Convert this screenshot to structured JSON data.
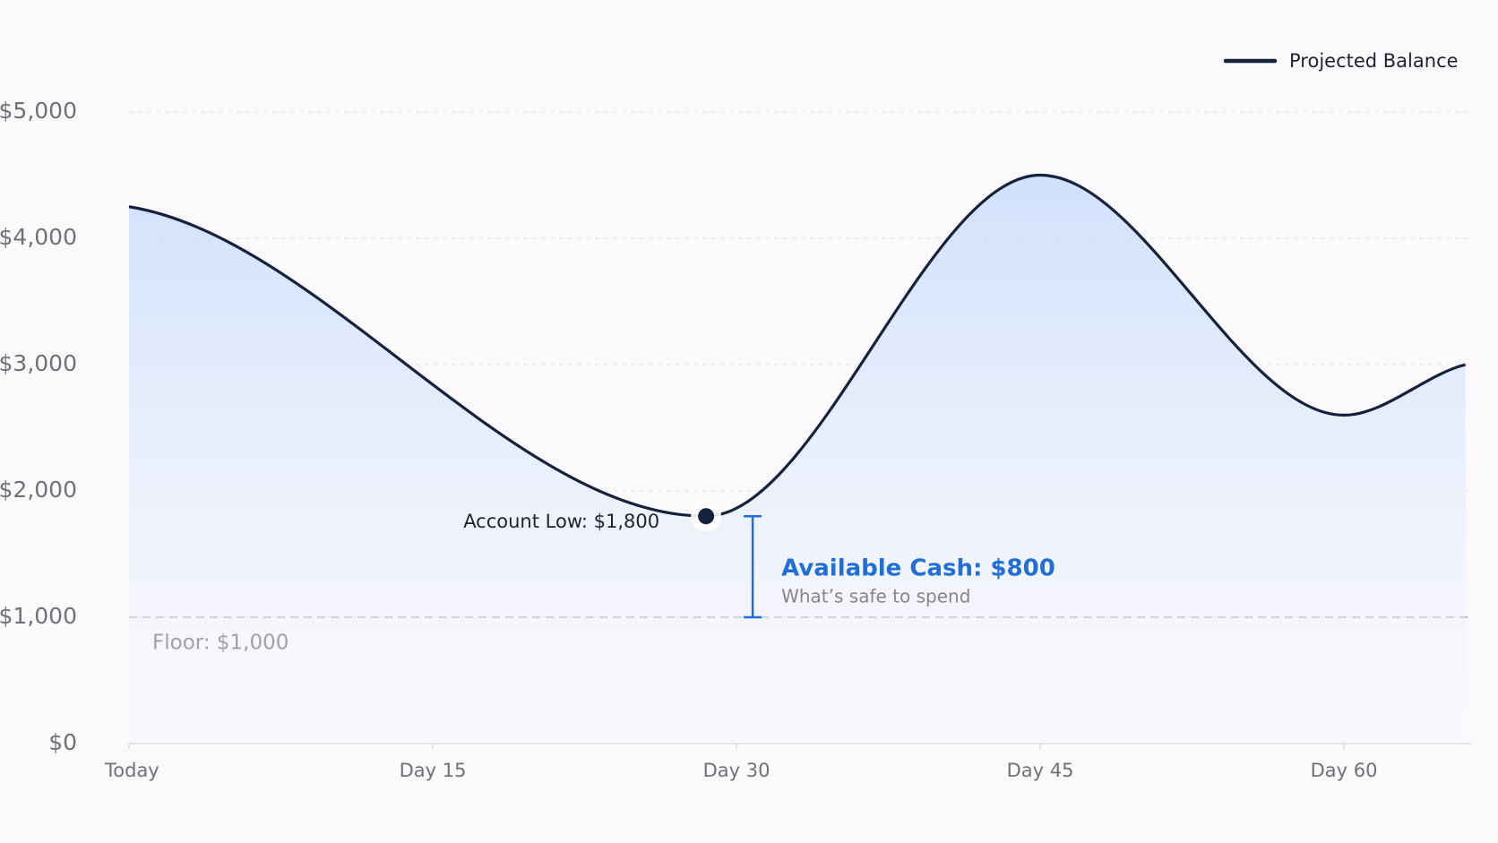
{
  "chart_data": {
    "type": "line",
    "legend": {
      "position": "top-right"
    },
    "series": [
      {
        "name": "Projected Balance",
        "color": "#15223b",
        "x": [
          0,
          28.5,
          45,
          60,
          66
        ],
        "values": [
          4250,
          1800,
          4500,
          2600,
          3000
        ]
      }
    ],
    "xlim": [
      0,
      66
    ],
    "xticks": [
      {
        "value": 0,
        "label": "Today"
      },
      {
        "value": 15,
        "label": "Day 15"
      },
      {
        "value": 30,
        "label": "Day 30"
      },
      {
        "value": 45,
        "label": "Day 45"
      },
      {
        "value": 60,
        "label": "Day 60"
      }
    ],
    "ylim": [
      0,
      5000
    ],
    "yticks": [
      {
        "value": 0,
        "label": "$0"
      },
      {
        "value": 1000,
        "label": "$1,000"
      },
      {
        "value": 2000,
        "label": "$2,000"
      },
      {
        "value": 3000,
        "label": "$3,000"
      },
      {
        "value": 4000,
        "label": "$4,000"
      },
      {
        "value": 5000,
        "label": "$5,000"
      }
    ],
    "grid": true,
    "annotations": {
      "low": {
        "x": 28.5,
        "value": 1800,
        "label": "Account Low: $1,800"
      },
      "floor": {
        "value": 1000,
        "label": "Floor: $1,000"
      },
      "available": {
        "value": 800,
        "label": "Available Cash: $800",
        "note": "What’s safe to spend"
      }
    }
  }
}
